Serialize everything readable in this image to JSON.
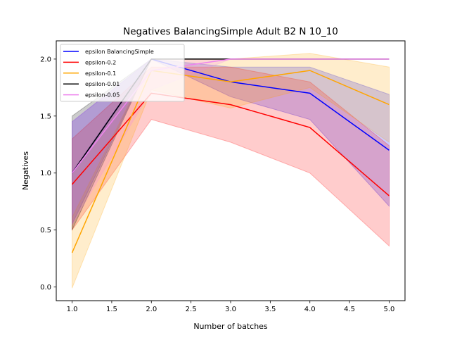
{
  "chart_data": {
    "type": "line",
    "title": "Negatives BalancingSimple Adult B2 N 10_10",
    "xlabel": "Number of batches",
    "ylabel": "Negatives",
    "xlim": [
      0.8,
      5.2
    ],
    "ylim": [
      -0.12,
      2.16
    ],
    "xticks": [
      1.0,
      1.5,
      2.0,
      2.5,
      3.0,
      3.5,
      4.0,
      4.5,
      5.0
    ],
    "xtick_labels": [
      "1.0",
      "1.5",
      "2.0",
      "2.5",
      "3.0",
      "3.5",
      "4.0",
      "4.5",
      "5.0"
    ],
    "yticks": [
      0.0,
      0.5,
      1.0,
      1.5,
      2.0
    ],
    "ytick_labels": [
      "0.0",
      "0.5",
      "1.0",
      "1.5",
      "2.0"
    ],
    "grid": false,
    "legend_position": "top-left",
    "x": [
      1,
      2,
      3,
      4,
      5
    ],
    "series": [
      {
        "name": "epsilon BalancingSimple",
        "color": "#0000ff",
        "values": [
          1.0,
          2.0,
          1.8,
          1.7,
          1.2
        ],
        "lower": [
          0.55,
          2.0,
          1.67,
          1.47,
          0.71
        ],
        "upper": [
          1.45,
          2.0,
          1.93,
          1.93,
          1.69
        ]
      },
      {
        "name": "epsilon-0.2",
        "color": "#ff0000",
        "values": [
          0.9,
          1.7,
          1.6,
          1.4,
          0.8
        ],
        "lower": [
          0.5,
          1.47,
          1.27,
          1.0,
          0.36
        ],
        "upper": [
          1.3,
          1.93,
          1.93,
          1.8,
          1.24
        ]
      },
      {
        "name": "epsilon-0.1",
        "color": "#ffa500",
        "values": [
          0.3,
          1.9,
          1.8,
          1.9,
          1.6
        ],
        "lower": [
          -0.01,
          1.73,
          1.57,
          1.75,
          1.27
        ],
        "upper": [
          0.61,
          2.0,
          2.0,
          2.05,
          1.93
        ]
      },
      {
        "name": "epsilon-0.01",
        "color": "#000000",
        "values": [
          1.0,
          2.0,
          2.0,
          2.0,
          2.0
        ],
        "lower": [
          0.5,
          2.0,
          2.0,
          2.0,
          2.0
        ],
        "upper": [
          1.5,
          2.0,
          2.0,
          2.0,
          2.0
        ]
      },
      {
        "name": "epsilon-0.05",
        "color": "#ee82ee",
        "values": [
          1.0,
          1.9,
          2.0,
          2.0,
          2.0
        ],
        "lower": [
          0.55,
          1.73,
          2.0,
          2.0,
          2.0
        ],
        "upper": [
          1.45,
          2.0,
          2.0,
          2.0,
          2.0
        ]
      }
    ]
  }
}
